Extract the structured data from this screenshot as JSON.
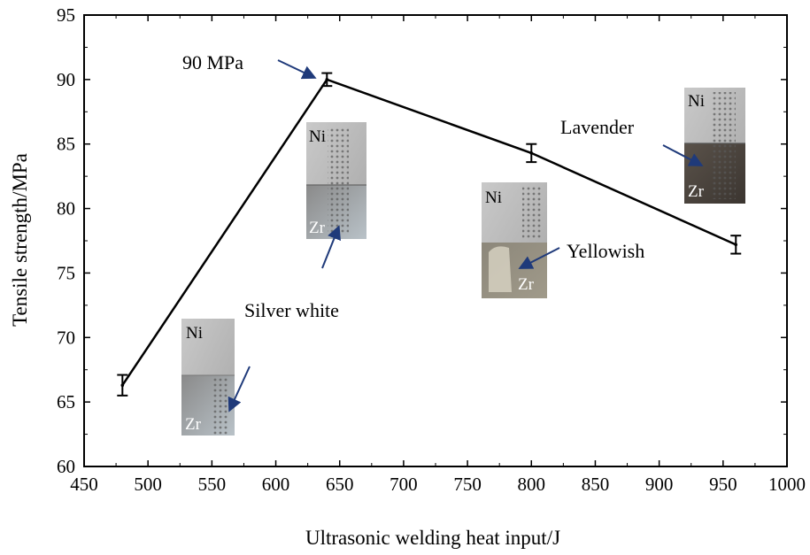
{
  "chart_data": {
    "type": "line",
    "title": "",
    "xlabel": "Ultrasonic welding heat input/J",
    "ylabel": "Tensile strength/MPa",
    "xlim": [
      450,
      1000
    ],
    "ylim": [
      60,
      95
    ],
    "xticks": [
      450,
      500,
      550,
      600,
      650,
      700,
      750,
      800,
      850,
      900,
      950,
      1000
    ],
    "yticks": [
      60,
      65,
      70,
      75,
      80,
      85,
      90,
      95
    ],
    "grid": false,
    "series": [
      {
        "x": [
          480,
          640,
          800,
          960
        ],
        "y": [
          66.3,
          90.0,
          84.3,
          77.2
        ],
        "error": [
          0.8,
          0.5,
          0.7,
          0.7
        ]
      }
    ],
    "annotations": [
      {
        "text": "90 MPa",
        "x": 640,
        "y": 90
      },
      {
        "text": "Silver white"
      },
      {
        "text": "Yellowish"
      },
      {
        "text": "Lavender"
      }
    ],
    "insets": [
      {
        "top_label": "Ni",
        "bottom_label": "Zr"
      },
      {
        "top_label": "Ni",
        "bottom_label": "Zr"
      },
      {
        "top_label": "Ni",
        "bottom_label": "Zr"
      },
      {
        "top_label": "Ni",
        "bottom_label": "Zr"
      }
    ]
  },
  "colors": {
    "line": "#000000",
    "arrow": "#1f3a7a"
  }
}
